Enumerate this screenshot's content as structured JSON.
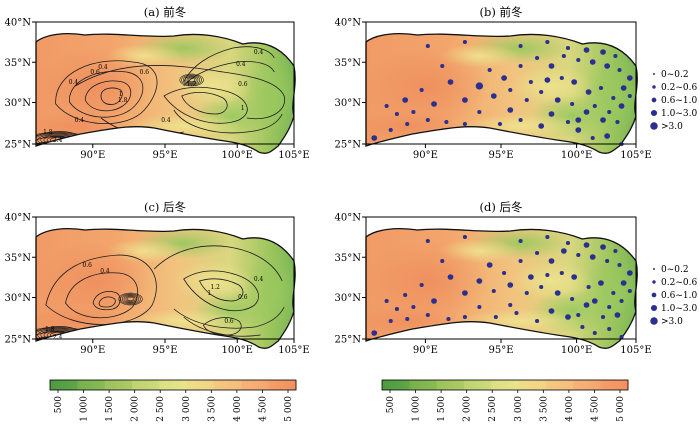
{
  "panels": [
    {
      "title": "(a) 前冬",
      "kind": "contour",
      "labels": [
        {
          "t": "0.4"
        },
        {
          "t": "0.6"
        },
        {
          "t": "0.6"
        },
        {
          "t": "0.4"
        },
        {
          "t": "1.8"
        },
        {
          "t": "1"
        },
        {
          "t": "1.2"
        },
        {
          "t": "0.6"
        },
        {
          "t": "1"
        },
        {
          "t": "0.4"
        },
        {
          "t": "0.4"
        },
        {
          "t": "0.4"
        },
        {
          "t": "0.4"
        },
        {
          "t": "1.8"
        },
        {
          "t": "2.4"
        }
      ]
    },
    {
      "title": "(b) 前冬",
      "kind": "dots"
    },
    {
      "title": "(c) 后冬",
      "kind": "contour",
      "labels": [
        {
          "t": "0.4"
        },
        {
          "t": "0.6"
        },
        {
          "t": "1.2"
        },
        {
          "t": "1"
        },
        {
          "t": "0.6"
        },
        {
          "t": "0.4"
        },
        {
          "t": "0.6"
        },
        {
          "t": "1.8"
        },
        {
          "t": "2.4"
        }
      ]
    },
    {
      "title": "(d) 后冬",
      "kind": "dots"
    }
  ],
  "lon_ticks": [
    "90°E",
    "95°E",
    "100°E",
    "105°E"
  ],
  "lat_ticks": [
    "40°N",
    "35°N",
    "30°N",
    "25°N"
  ],
  "legend": [
    {
      "label": "0~0.2"
    },
    {
      "label": "0.2~0.6"
    },
    {
      "label": "0.6~1.0"
    },
    {
      "label": "1.0~3.0"
    },
    {
      "label": ">3.0"
    }
  ],
  "colorbar": {
    "ticks": [
      "500",
      "1 000",
      "1 500",
      "2 000",
      "2 500",
      "3 000",
      "3 500",
      "4 000",
      "4 500",
      "5 000"
    ],
    "colors": [
      "#4c9a41",
      "#7db450",
      "#a8c860",
      "#cfdc7c",
      "#ece58f",
      "#f4cf84",
      "#f6b87a",
      "#f5a06e",
      "#f3905f"
    ]
  },
  "dot_color": "#2b2f8f",
  "terrain_colors": {
    "high": "#f19a66",
    "mid": "#f1c47f",
    "low": "#9ec65e",
    "green": "#78b554"
  }
}
